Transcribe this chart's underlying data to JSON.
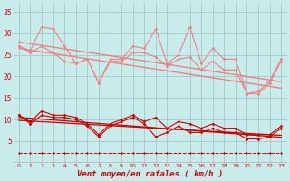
{
  "background_color": "#c8ecec",
  "grid_color": "#a0c0c0",
  "x_labels": [
    "0",
    "1",
    "2",
    "3",
    "4",
    "5",
    "6",
    "7",
    "8",
    "9",
    "10",
    "11",
    "12",
    "13",
    "14",
    "15",
    "16",
    "17",
    "18",
    "19",
    "20",
    "21",
    "22",
    "23"
  ],
  "xlabel": "Vent moyen/en rafales ( km/h )",
  "ylim": [
    0,
    37
  ],
  "yticks": [
    5,
    10,
    15,
    20,
    25,
    30,
    35
  ],
  "series": [
    {
      "name": "upper_jagged_top",
      "color": "#f08080",
      "linewidth": 0.8,
      "marker": "D",
      "markersize": 1.8,
      "linestyle": "-",
      "y": [
        27,
        26,
        31.5,
        31,
        27,
        23,
        24,
        18.5,
        24,
        24,
        27,
        26.5,
        31,
        23,
        25,
        31.5,
        23,
        26.5,
        24,
        24,
        16,
        16.5,
        19,
        24
      ]
    },
    {
      "name": "upper_jagged_bot",
      "color": "#f08080",
      "linewidth": 0.8,
      "marker": "D",
      "markersize": 1.8,
      "linestyle": "-",
      "y": [
        27,
        25.5,
        27,
        25.5,
        23.5,
        23,
        24,
        18.5,
        23.5,
        23.5,
        25.5,
        25.5,
        24.5,
        22.5,
        24,
        24.5,
        21.5,
        23.5,
        21.5,
        21.5,
        16,
        16,
        18.5,
        23.5
      ]
    },
    {
      "name": "trend_upper",
      "color": "#f08080",
      "linewidth": 1.0,
      "marker": null,
      "linestyle": "-",
      "y": [
        28.0,
        27.6,
        27.2,
        26.8,
        26.4,
        26.0,
        25.6,
        25.2,
        24.8,
        24.4,
        24.0,
        23.6,
        23.2,
        22.8,
        22.4,
        22.0,
        21.6,
        21.2,
        20.8,
        20.4,
        20.0,
        19.6,
        19.2,
        18.8
      ]
    },
    {
      "name": "trend_lower",
      "color": "#f08080",
      "linewidth": 1.0,
      "marker": null,
      "linestyle": "-",
      "y": [
        26.5,
        26.1,
        25.7,
        25.3,
        24.9,
        24.5,
        24.1,
        23.7,
        23.3,
        22.9,
        22.5,
        22.1,
        21.7,
        21.3,
        20.9,
        20.5,
        20.1,
        19.7,
        19.3,
        18.9,
        18.5,
        18.1,
        17.7,
        17.3
      ]
    },
    {
      "name": "lower_jagged_top",
      "color": "#cc0000",
      "linewidth": 0.8,
      "marker": "D",
      "markersize": 1.8,
      "linestyle": "-",
      "y": [
        11,
        9.5,
        12,
        11,
        11,
        10.5,
        9,
        6.5,
        9,
        10,
        11,
        9.5,
        10.5,
        8,
        9.5,
        9,
        8,
        9,
        8,
        8,
        6.5,
        6.5,
        6.5,
        8.5
      ]
    },
    {
      "name": "lower_jagged_bot",
      "color": "#cc0000",
      "linewidth": 0.8,
      "marker": "D",
      "markersize": 1.8,
      "linestyle": "-",
      "y": [
        11,
        9,
        11,
        10.5,
        10.5,
        10,
        8.5,
        6,
        8.5,
        9.5,
        10.5,
        9,
        6,
        7,
        8.5,
        7,
        7,
        8,
        7,
        7,
        5.5,
        5.5,
        6,
        8
      ]
    },
    {
      "name": "trend_red_top",
      "color": "#cc0000",
      "linewidth": 0.9,
      "marker": null,
      "linestyle": "-",
      "y": [
        10.5,
        10.3,
        10.1,
        9.9,
        9.7,
        9.5,
        9.3,
        9.1,
        8.9,
        8.7,
        8.5,
        8.3,
        8.1,
        7.9,
        7.7,
        7.5,
        7.3,
        7.1,
        6.9,
        6.7,
        6.5,
        6.3,
        6.1,
        5.9
      ]
    },
    {
      "name": "trend_red_bot",
      "color": "#cc0000",
      "linewidth": 0.9,
      "marker": null,
      "linestyle": "-",
      "y": [
        9.8,
        9.65,
        9.5,
        9.35,
        9.2,
        9.05,
        8.9,
        8.75,
        8.6,
        8.45,
        8.3,
        8.15,
        8.0,
        7.85,
        7.7,
        7.55,
        7.4,
        7.25,
        7.1,
        6.95,
        6.8,
        6.65,
        6.5,
        6.35
      ]
    },
    {
      "name": "dashes_bottom",
      "color": "#cc0000",
      "linewidth": 0.7,
      "marker": "D",
      "markersize": 1.5,
      "linestyle": "--",
      "y": [
        2.2,
        2.2,
        2.2,
        2.2,
        2.2,
        2.2,
        2.2,
        2.2,
        2.2,
        2.2,
        2.2,
        2.2,
        2.2,
        2.2,
        2.2,
        2.2,
        2.2,
        2.2,
        2.2,
        2.2,
        2.2,
        2.2,
        2.2,
        2.2
      ]
    }
  ]
}
